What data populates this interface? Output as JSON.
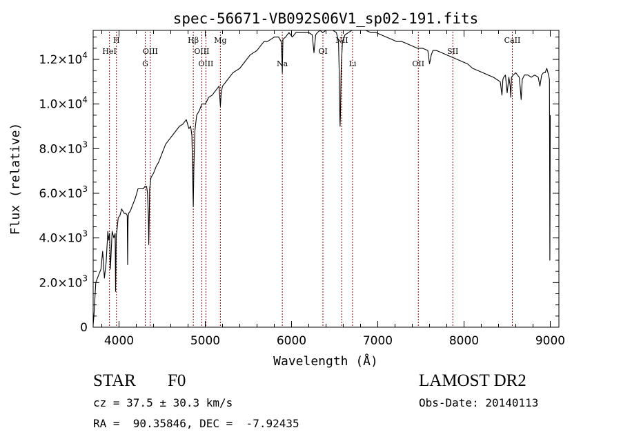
{
  "chart_data": {
    "type": "line",
    "title": "spec-56671-VB092S06V1_sp02-191.fits",
    "xlabel": "Wavelength (Å)",
    "ylabel": "Flux (relative)",
    "xlim": [
      3700,
      9100
    ],
    "ylim": [
      0,
      13300
    ],
    "xticks": [
      4000,
      5000,
      6000,
      7000,
      8000,
      9000
    ],
    "xtick_labels": [
      "4000",
      "5000",
      "6000",
      "7000",
      "8000",
      "9000"
    ],
    "yticks": [
      0,
      2000,
      4000,
      6000,
      8000,
      10000,
      12000
    ],
    "ytick_labels": [
      {
        "mant": "0",
        "exp": ""
      },
      {
        "mant": "2.0×10",
        "exp": "3"
      },
      {
        "mant": "4.0×10",
        "exp": "3"
      },
      {
        "mant": "6.0×10",
        "exp": "3"
      },
      {
        "mant": "8.0×10",
        "exp": "3"
      },
      {
        "mant": "1.0×10",
        "exp": "4"
      },
      {
        "mant": "1.2×10",
        "exp": "4"
      }
    ],
    "grid": false,
    "line_color": "#000000",
    "marker_color": "#8b0000",
    "series": [
      {
        "x": [
          3700,
          3710,
          3730,
          3760,
          3790,
          3810,
          3830,
          3850,
          3870,
          3880,
          3890,
          3900,
          3920,
          3940,
          3955,
          3960,
          3968,
          3975,
          3990,
          4010,
          4030,
          4060,
          4080,
          4095,
          4100,
          4105,
          4110,
          4130,
          4160,
          4190,
          4220,
          4250,
          4280,
          4300,
          4320,
          4330,
          4340,
          4345,
          4350,
          4355,
          4370,
          4400,
          4430,
          4460,
          4500,
          4540,
          4580,
          4620,
          4660,
          4700,
          4740,
          4780,
          4810,
          4830,
          4845,
          4855,
          4861,
          4868,
          4880,
          4900,
          4930,
          4960,
          5000,
          5040,
          5080,
          5120,
          5160,
          5175,
          5185,
          5200,
          5240,
          5280,
          5320,
          5360,
          5400,
          5440,
          5480,
          5520,
          5560,
          5600,
          5640,
          5680,
          5720,
          5760,
          5800,
          5850,
          5880,
          5890,
          5893,
          5896,
          5900,
          5930,
          5970,
          6010,
          6050,
          6100,
          6150,
          6200,
          6240,
          6260,
          6280,
          6300,
          6330,
          6360,
          6400,
          6440,
          6480,
          6520,
          6545,
          6555,
          6560,
          6563,
          6567,
          6575,
          6590,
          6620,
          6660,
          6700,
          6750,
          6800,
          6860,
          6920,
          6980,
          7040,
          7100,
          7160,
          7220,
          7280,
          7340,
          7400,
          7460,
          7520,
          7580,
          7600,
          7620,
          7640,
          7680,
          7740,
          7800,
          7860,
          7920,
          7980,
          8040,
          8100,
          8160,
          8220,
          8280,
          8340,
          8380,
          8420,
          8440,
          8450,
          8460,
          8480,
          8500,
          8520,
          8535,
          8542,
          8550,
          8570,
          8600,
          8640,
          8650,
          8662,
          8675,
          8700,
          8740,
          8780,
          8820,
          8860,
          8880,
          8900,
          8920,
          8940,
          8960,
          8980,
          8990,
          8995,
          9000
        ],
        "y": [
          100,
          600,
          2000,
          2300,
          2600,
          3400,
          2200,
          2900,
          4300,
          3900,
          4200,
          2600,
          4300,
          4000,
          4200,
          1600,
          4100,
          4300,
          4900,
          5000,
          5300,
          5100,
          5100,
          5000,
          2800,
          4800,
          5100,
          5200,
          5500,
          5800,
          6200,
          6200,
          6200,
          6300,
          6300,
          6000,
          5000,
          3700,
          4900,
          6200,
          6700,
          6900,
          7200,
          7400,
          7800,
          8200,
          8400,
          8600,
          8800,
          9000,
          9100,
          9300,
          8900,
          9000,
          8600,
          6500,
          5400,
          7200,
          8800,
          9500,
          9700,
          10000,
          10000,
          10300,
          10400,
          10600,
          10800,
          9900,
          10500,
          10800,
          11000,
          11200,
          11400,
          11500,
          11600,
          11800,
          12000,
          12200,
          12300,
          12400,
          12600,
          12800,
          12800,
          12900,
          13000,
          13000,
          12800,
          11900,
          11400,
          12000,
          12900,
          13000,
          13200,
          13000,
          13200,
          13200,
          13200,
          13200,
          13100,
          12300,
          13100,
          13200,
          13300,
          13200,
          13300,
          13300,
          13300,
          13200,
          12800,
          11000,
          9500,
          9000,
          9500,
          11500,
          12800,
          13100,
          13200,
          13300,
          13300,
          13300,
          13300,
          13200,
          13200,
          13100,
          13000,
          12900,
          12800,
          12800,
          12700,
          12600,
          12500,
          12500,
          12400,
          11800,
          12200,
          12400,
          12400,
          12300,
          12200,
          12100,
          12000,
          11900,
          11800,
          11600,
          11500,
          11400,
          11300,
          11200,
          11100,
          11000,
          10400,
          11100,
          11200,
          11300,
          10500,
          11200,
          10800,
          10300,
          11200,
          11300,
          11400,
          11200,
          10800,
          10200,
          11100,
          11300,
          11300,
          11200,
          11300,
          11200,
          10800,
          11300,
          11400,
          11400,
          11600,
          11300,
          11100,
          3000,
          9500
        ]
      }
    ],
    "line_markers": [
      {
        "label": "H",
        "x": 3970,
        "row": 1
      },
      {
        "label": "HeI",
        "x": 3889,
        "row": 2
      },
      {
        "label": "OIII",
        "x": 4363,
        "row": 2
      },
      {
        "label": "G",
        "x": 4304,
        "row": 3
      },
      {
        "label": "Hβ",
        "x": 4861,
        "row": 1
      },
      {
        "label": "OIII",
        "x": 4959,
        "row": 2
      },
      {
        "label": "OIII",
        "x": 5007,
        "row": 3
      },
      {
        "label": "Mg",
        "x": 5175,
        "row": 1
      },
      {
        "label": "Na",
        "x": 5893,
        "row": 3
      },
      {
        "label": "OI",
        "x": 6364,
        "row": 2
      },
      {
        "label": "NII",
        "x": 6584,
        "row": 1
      },
      {
        "label": "Li",
        "x": 6708,
        "row": 3
      },
      {
        "label": "OII",
        "x": 7470,
        "row": 3
      },
      {
        "label": "SII",
        "x": 7870,
        "row": 2
      },
      {
        "label": "CaII",
        "x": 8560,
        "row": 1
      }
    ]
  },
  "info": {
    "star_label": "STAR",
    "spectral_type": "F0",
    "survey": "LAMOST DR2",
    "cz": "cz = 37.5 ± 30.3 km/s",
    "obs_date": "Obs-Date: 20140113",
    "coords": "RA =  90.35846, DEC =  -7.92435"
  }
}
